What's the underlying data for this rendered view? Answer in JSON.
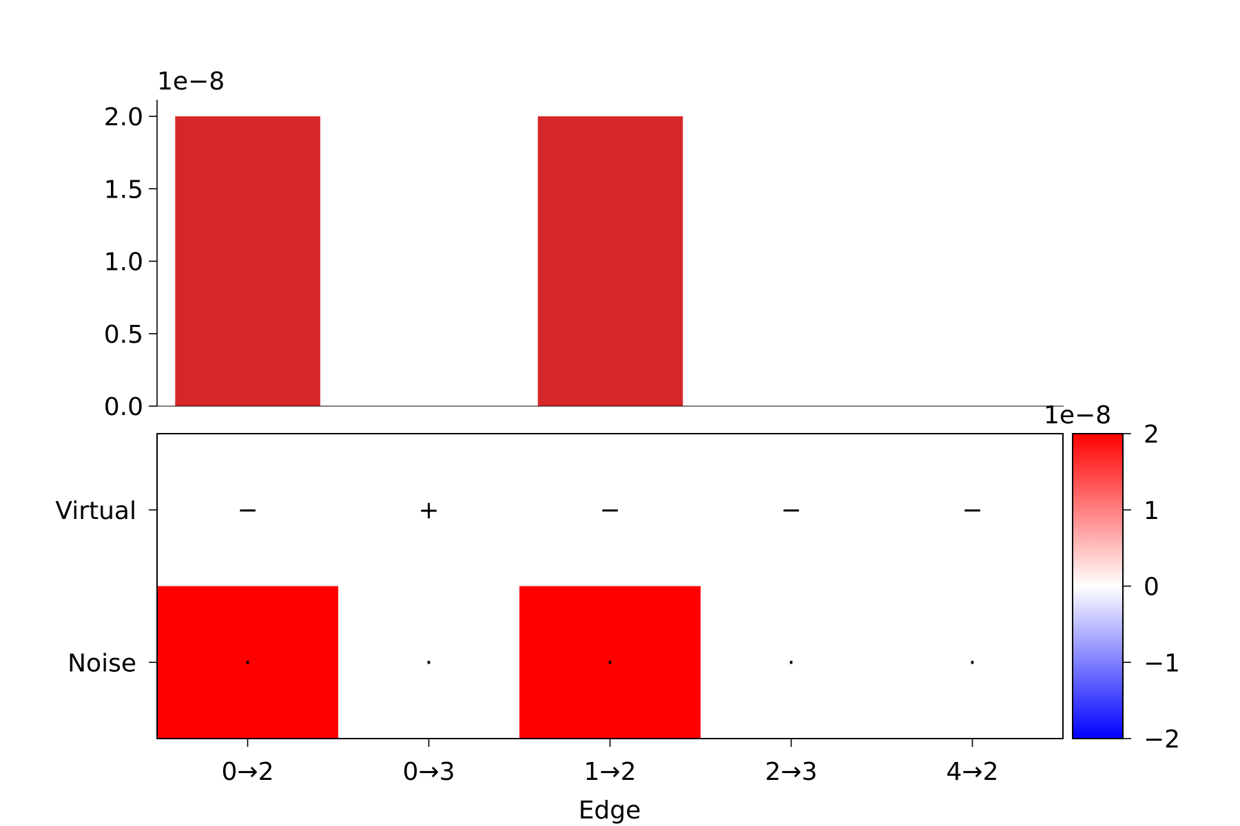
{
  "chart_data": [
    {
      "type": "bar",
      "categories": [
        "0→2",
        "0→3",
        "1→2",
        "2→3",
        "4→2"
      ],
      "values": [
        2e-08,
        0,
        2e-08,
        0,
        0
      ],
      "ylim": [
        0,
        2.1e-08
      ],
      "yticks": [
        0.0,
        0.5,
        1.0,
        1.5,
        2.0
      ],
      "ytick_labels": [
        "0.0",
        "0.5",
        "1.0",
        "1.5",
        "2.0"
      ],
      "offset_label": "1e−8",
      "bar_color": "#d62728",
      "grid": false
    },
    {
      "type": "heatmap",
      "x_categories": [
        "0→2",
        "0→3",
        "1→2",
        "2→3",
        "4→2"
      ],
      "y_categories": [
        "Virtual",
        "Noise"
      ],
      "xlabel": "Edge",
      "values": [
        [
          0,
          0,
          0,
          0,
          0
        ],
        [
          2e-08,
          0,
          2e-08,
          0,
          0
        ]
      ],
      "annotations": [
        [
          "−",
          "+",
          "−",
          "−",
          "−"
        ],
        [
          "·",
          "·",
          "·",
          "·",
          "·"
        ]
      ],
      "colormap": "bwr",
      "color_range": [
        -2e-08,
        2e-08
      ],
      "colorbar": {
        "ticks": [
          2,
          1,
          0,
          -1,
          -2
        ],
        "tick_labels": [
          "2",
          "1",
          "0",
          "−1",
          "−2"
        ],
        "offset_label": "1e−8",
        "colors": [
          "#0000ff",
          "#ffffff",
          "#ff0000"
        ]
      }
    }
  ]
}
